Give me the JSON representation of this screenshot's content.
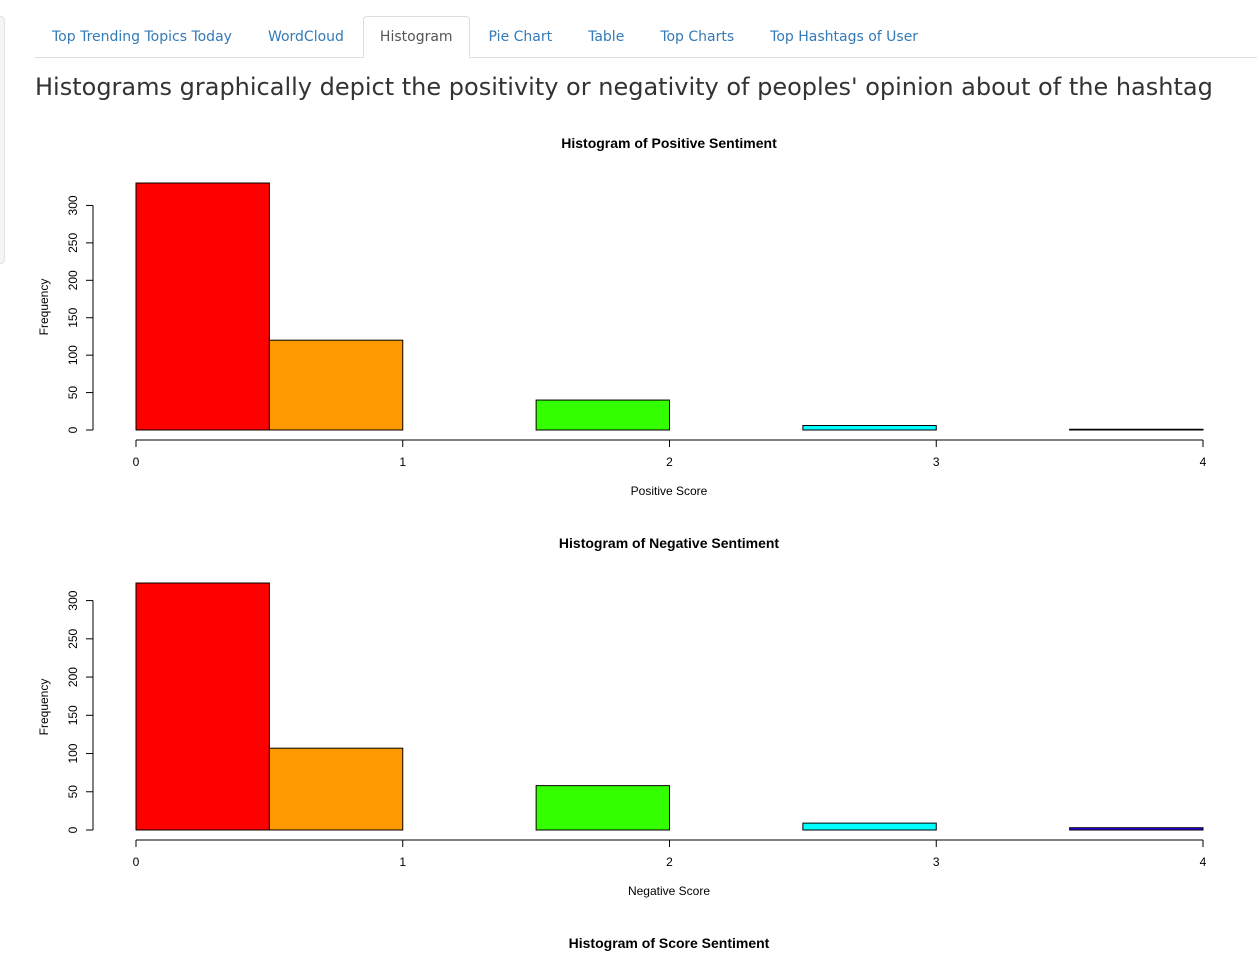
{
  "tabs": [
    {
      "label": "Top Trending Topics Today",
      "active": false
    },
    {
      "label": "WordCloud",
      "active": false
    },
    {
      "label": "Histogram",
      "active": true
    },
    {
      "label": "Pie Chart",
      "active": false
    },
    {
      "label": "Table",
      "active": false
    },
    {
      "label": "Top Charts",
      "active": false
    },
    {
      "label": "Top Hashtags of User",
      "active": false
    }
  ],
  "heading": "Histograms graphically depict the positivity or negativity of peoples' opinion about of the hashtag",
  "chart_data": [
    {
      "type": "bar",
      "title": "Histogram of Positive Sentiment",
      "xlabel": "Positive Score",
      "ylabel": "Frequency",
      "xlim": [
        0,
        4
      ],
      "ylim": [
        0,
        330
      ],
      "x_ticks": [
        "0",
        "1",
        "2",
        "3",
        "4"
      ],
      "y_ticks": [
        "0",
        "50",
        "100",
        "150",
        "200",
        "250",
        "300"
      ],
      "bins": [
        {
          "from": 0,
          "to": 0.5,
          "value": 330,
          "color": "#ff0000"
        },
        {
          "from": 0.5,
          "to": 1,
          "value": 120,
          "color": "#ff9900"
        },
        {
          "from": 1,
          "to": 1.5,
          "value": 0,
          "color": "#ccff00"
        },
        {
          "from": 1.5,
          "to": 2,
          "value": 40,
          "color": "#33ff00"
        },
        {
          "from": 2,
          "to": 2.5,
          "value": 0,
          "color": "#00ff66"
        },
        {
          "from": 2.5,
          "to": 3,
          "value": 6,
          "color": "#00ffff"
        },
        {
          "from": 3,
          "to": 3.5,
          "value": 0,
          "color": "#0066ff"
        },
        {
          "from": 3.5,
          "to": 4,
          "value": 1,
          "color": "#3300ff"
        }
      ]
    },
    {
      "type": "bar",
      "title": "Histogram of Negative Sentiment",
      "xlabel": "Negative Score",
      "ylabel": "Frequency",
      "xlim": [
        0,
        4
      ],
      "ylim": [
        0,
        323
      ],
      "x_ticks": [
        "0",
        "1",
        "2",
        "3",
        "4"
      ],
      "y_ticks": [
        "0",
        "50",
        "100",
        "150",
        "200",
        "250",
        "300"
      ],
      "bins": [
        {
          "from": 0,
          "to": 0.5,
          "value": 323,
          "color": "#ff0000"
        },
        {
          "from": 0.5,
          "to": 1,
          "value": 107,
          "color": "#ff9900"
        },
        {
          "from": 1,
          "to": 1.5,
          "value": 0,
          "color": "#ccff00"
        },
        {
          "from": 1.5,
          "to": 2,
          "value": 58,
          "color": "#33ff00"
        },
        {
          "from": 2,
          "to": 2.5,
          "value": 0,
          "color": "#00ff66"
        },
        {
          "from": 2.5,
          "to": 3,
          "value": 9,
          "color": "#00ffff"
        },
        {
          "from": 3,
          "to": 3.5,
          "value": 0,
          "color": "#0066ff"
        },
        {
          "from": 3.5,
          "to": 4,
          "value": 3,
          "color": "#3300ff"
        }
      ]
    },
    {
      "type": "bar",
      "title": "Histogram of Score Sentiment"
    }
  ]
}
